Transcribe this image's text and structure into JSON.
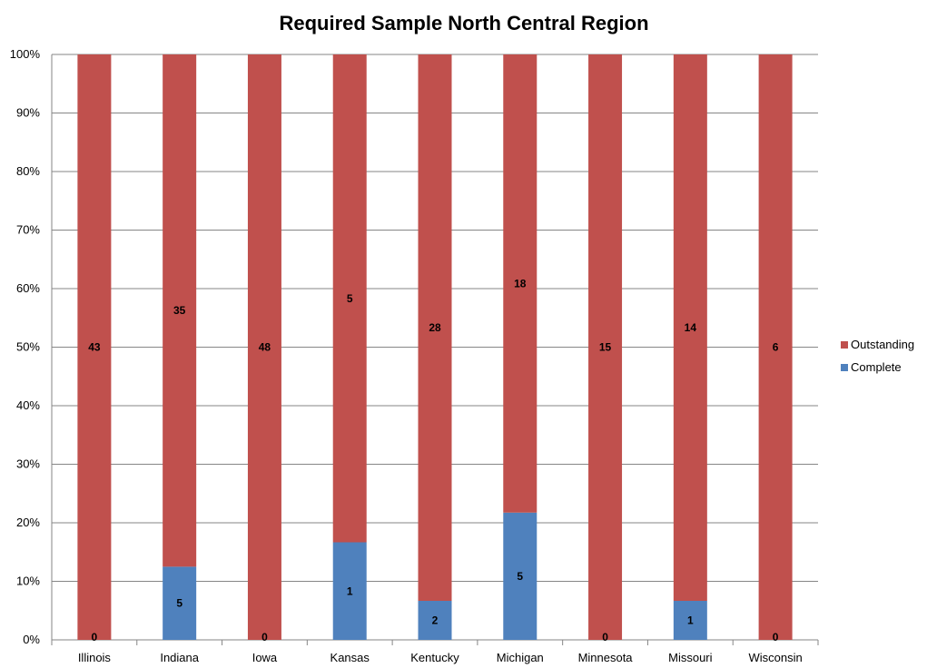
{
  "chart_data": {
    "type": "bar",
    "stacking": "percent",
    "title": "Required Sample North Central Region",
    "xlabel": "",
    "ylabel": "",
    "categories": [
      "Illinois",
      "Indiana",
      "Iowa",
      "Kansas",
      "Kentucky",
      "Michigan",
      "Minnesota",
      "Missouri",
      "Wisconsin"
    ],
    "series": [
      {
        "name": "Complete",
        "color": "#4F81BD",
        "values": [
          0,
          5,
          0,
          1,
          2,
          5,
          0,
          1,
          0
        ]
      },
      {
        "name": "Outstanding",
        "color": "#C0504D",
        "values": [
          43,
          35,
          48,
          5,
          28,
          18,
          15,
          14,
          6
        ]
      }
    ],
    "yticks": [
      "0%",
      "10%",
      "20%",
      "30%",
      "40%",
      "50%",
      "60%",
      "70%",
      "80%",
      "90%",
      "100%"
    ],
    "ylim": [
      0,
      100
    ],
    "grid": true,
    "legend": {
      "position": "right",
      "entries": [
        "Outstanding",
        "Complete"
      ]
    }
  }
}
